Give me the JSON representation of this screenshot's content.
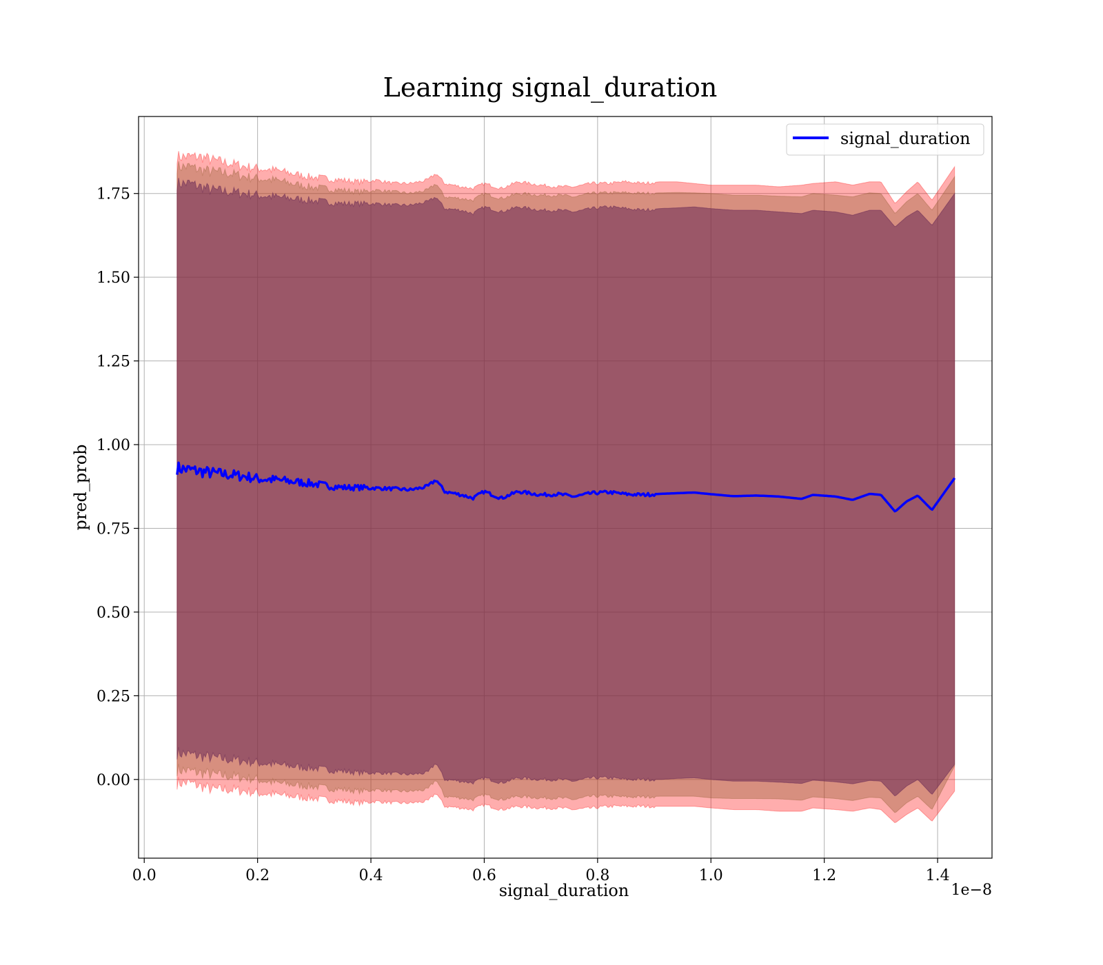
{
  "chart_data": {
    "type": "area",
    "title": "Learning signal_duration",
    "xlabel": "signal_duration",
    "ylabel": "pred_prob",
    "x_offset_text": "1e−8",
    "xlim": [
      -0.01,
      1.496
    ],
    "ylim": [
      -0.235,
      1.98
    ],
    "x_ticks": [
      "0.0",
      "0.2",
      "0.4",
      "0.6",
      "0.8",
      "1.0",
      "1.2",
      "1.4"
    ],
    "x_tick_values": [
      0.0,
      0.2,
      0.4,
      0.6,
      0.8,
      1.0,
      1.2,
      1.4
    ],
    "y_ticks": [
      "0.00",
      "0.25",
      "0.50",
      "0.75",
      "1.00",
      "1.25",
      "1.50",
      "1.75"
    ],
    "y_tick_values": [
      0.0,
      0.25,
      0.5,
      0.75,
      1.0,
      1.25,
      1.5,
      1.75
    ],
    "grid": true,
    "legend": {
      "position": "top-right",
      "entries": [
        "signal_duration"
      ]
    },
    "colors": {
      "line": "#0000ff",
      "band_outer": "#ff0000",
      "band_inner": "#8b5a2b",
      "band_core": "#6a2a55"
    },
    "series": [
      {
        "name": "signal_duration",
        "x": [
          0.058,
          0.08,
          0.1,
          0.12,
          0.15,
          0.18,
          0.2,
          0.23,
          0.26,
          0.29,
          0.32,
          0.35,
          0.38,
          0.41,
          0.44,
          0.47,
          0.5,
          0.515,
          0.53,
          0.56,
          0.58,
          0.6,
          0.63,
          0.66,
          0.7,
          0.73,
          0.76,
          0.79,
          0.82,
          0.85,
          0.88,
          0.91,
          0.94,
          0.97,
          1.0,
          1.04,
          1.08,
          1.12,
          1.16,
          1.18,
          1.22,
          1.25,
          1.28,
          1.3,
          1.325,
          1.345,
          1.365,
          1.39,
          1.43
        ],
        "y": [
          0.93,
          0.925,
          0.92,
          0.915,
          0.91,
          0.905,
          0.898,
          0.895,
          0.89,
          0.885,
          0.878,
          0.872,
          0.872,
          0.87,
          0.868,
          0.865,
          0.875,
          0.895,
          0.86,
          0.85,
          0.84,
          0.86,
          0.84,
          0.86,
          0.85,
          0.852,
          0.845,
          0.855,
          0.858,
          0.852,
          0.85,
          0.853,
          0.855,
          0.857,
          0.852,
          0.846,
          0.848,
          0.845,
          0.838,
          0.85,
          0.845,
          0.835,
          0.853,
          0.85,
          0.8,
          0.83,
          0.848,
          0.805,
          0.9
        ],
        "outer_upper": [
          1.86,
          1.86,
          1.86,
          1.85,
          1.84,
          1.83,
          1.825,
          1.82,
          1.81,
          1.8,
          1.795,
          1.79,
          1.785,
          1.79,
          1.78,
          1.78,
          1.79,
          1.81,
          1.78,
          1.77,
          1.765,
          1.78,
          1.765,
          1.785,
          1.775,
          1.77,
          1.77,
          1.78,
          1.78,
          1.785,
          1.78,
          1.785,
          1.785,
          1.78,
          1.775,
          1.775,
          1.775,
          1.77,
          1.775,
          1.78,
          1.785,
          1.775,
          1.785,
          1.785,
          1.72,
          1.755,
          1.785,
          1.73,
          1.83
        ],
        "outer_lower": [
          -0.01,
          -0.01,
          -0.02,
          -0.03,
          -0.03,
          -0.035,
          -0.04,
          -0.045,
          -0.05,
          -0.055,
          -0.06,
          -0.065,
          -0.07,
          -0.065,
          -0.07,
          -0.07,
          -0.065,
          -0.04,
          -0.08,
          -0.085,
          -0.09,
          -0.075,
          -0.09,
          -0.08,
          -0.085,
          -0.085,
          -0.09,
          -0.085,
          -0.08,
          -0.08,
          -0.08,
          -0.08,
          -0.08,
          -0.08,
          -0.085,
          -0.09,
          -0.09,
          -0.095,
          -0.095,
          -0.085,
          -0.09,
          -0.095,
          -0.085,
          -0.09,
          -0.13,
          -0.105,
          -0.085,
          -0.125,
          -0.035
        ],
        "inner_upper": [
          1.83,
          1.83,
          1.82,
          1.815,
          1.81,
          1.8,
          1.795,
          1.79,
          1.78,
          1.77,
          1.765,
          1.76,
          1.755,
          1.76,
          1.755,
          1.75,
          1.76,
          1.78,
          1.74,
          1.735,
          1.73,
          1.75,
          1.735,
          1.75,
          1.745,
          1.745,
          1.74,
          1.75,
          1.752,
          1.752,
          1.75,
          1.752,
          1.753,
          1.752,
          1.75,
          1.745,
          1.745,
          1.742,
          1.74,
          1.75,
          1.745,
          1.74,
          1.752,
          1.75,
          1.69,
          1.725,
          1.75,
          1.7,
          1.8
        ],
        "inner_lower": [
          0.03,
          0.025,
          0.02,
          0.015,
          0.01,
          0.005,
          0.0,
          -0.01,
          -0.015,
          -0.02,
          -0.025,
          -0.03,
          -0.035,
          -0.03,
          -0.035,
          -0.035,
          -0.03,
          0.0,
          -0.05,
          -0.055,
          -0.06,
          -0.045,
          -0.06,
          -0.05,
          -0.055,
          -0.055,
          -0.06,
          -0.05,
          -0.05,
          -0.052,
          -0.052,
          -0.05,
          -0.05,
          -0.05,
          -0.055,
          -0.057,
          -0.057,
          -0.058,
          -0.062,
          -0.052,
          -0.057,
          -0.063,
          -0.053,
          -0.055,
          -0.1,
          -0.07,
          -0.05,
          -0.09,
          0.04
        ],
        "core_upper": [
          1.78,
          1.78,
          1.77,
          1.76,
          1.755,
          1.75,
          1.745,
          1.74,
          1.735,
          1.73,
          1.725,
          1.72,
          1.72,
          1.72,
          1.715,
          1.715,
          1.725,
          1.74,
          1.705,
          1.7,
          1.69,
          1.71,
          1.695,
          1.71,
          1.7,
          1.7,
          1.695,
          1.705,
          1.71,
          1.705,
          1.7,
          1.705,
          1.707,
          1.71,
          1.705,
          1.7,
          1.7,
          1.695,
          1.69,
          1.7,
          1.695,
          1.685,
          1.7,
          1.7,
          1.65,
          1.68,
          1.7,
          1.655,
          1.75
        ],
        "core_lower": [
          0.08,
          0.075,
          0.07,
          0.065,
          0.06,
          0.055,
          0.05,
          0.045,
          0.04,
          0.035,
          0.03,
          0.025,
          0.02,
          0.02,
          0.018,
          0.015,
          0.02,
          0.05,
          0.0,
          -0.005,
          -0.01,
          0.005,
          -0.01,
          0.005,
          0.0,
          0.0,
          -0.005,
          0.005,
          0.005,
          0.0,
          0.0,
          0.0,
          0.003,
          0.005,
          0.0,
          -0.005,
          -0.005,
          -0.008,
          -0.012,
          -0.002,
          -0.007,
          -0.013,
          -0.003,
          -0.005,
          -0.05,
          -0.02,
          0.0,
          -0.045,
          0.045
        ]
      }
    ]
  }
}
